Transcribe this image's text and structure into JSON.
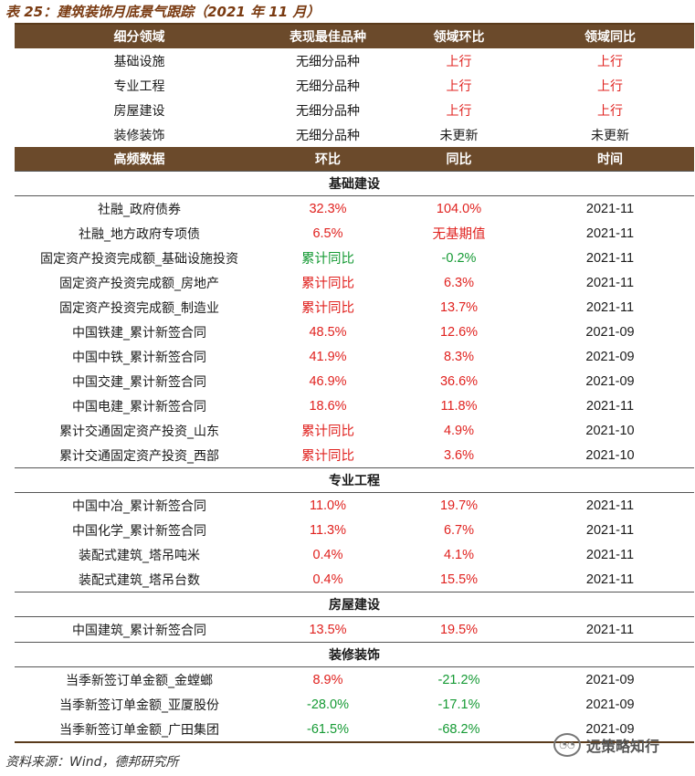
{
  "title": "表 25：建筑装饰月底景气跟踪（2021 年 11 月）",
  "header1": [
    "细分领域",
    "表现最佳品种",
    "领域环比",
    "领域同比"
  ],
  "summary_rows": [
    {
      "domain": "基础设施",
      "best": "无细分品种",
      "mom": "上行",
      "yoy": "上行",
      "mom_color": "red",
      "yoy_color": "red"
    },
    {
      "domain": "专业工程",
      "best": "无细分品种",
      "mom": "上行",
      "yoy": "上行",
      "mom_color": "red",
      "yoy_color": "red"
    },
    {
      "domain": "房屋建设",
      "best": "无细分品种",
      "mom": "上行",
      "yoy": "上行",
      "mom_color": "red",
      "yoy_color": "red"
    },
    {
      "domain": "装修装饰",
      "best": "无细分品种",
      "mom": "未更新",
      "yoy": "未更新",
      "mom_color": "black",
      "yoy_color": "black"
    }
  ],
  "header2": [
    "高频数据",
    "环比",
    "同比",
    "时间"
  ],
  "sections": [
    {
      "name": "基础建设",
      "rows": [
        {
          "item": "社融_政府债券",
          "mom": "32.3%",
          "yoy": "104.0%",
          "time": "2021-11",
          "mom_color": "red",
          "yoy_color": "red"
        },
        {
          "item": "社融_地方政府专项债",
          "mom": "6.5%",
          "yoy": "无基期值",
          "time": "2021-11",
          "mom_color": "red",
          "yoy_color": "red"
        },
        {
          "item": "固定资产投资完成额_基础设施投资",
          "mom": "累计同比",
          "yoy": "-0.2%",
          "time": "2021-11",
          "mom_color": "green",
          "yoy_color": "green"
        },
        {
          "item": "固定资产投资完成额_房地产",
          "mom": "累计同比",
          "yoy": "6.3%",
          "time": "2021-11",
          "mom_color": "red",
          "yoy_color": "red"
        },
        {
          "item": "固定资产投资完成额_制造业",
          "mom": "累计同比",
          "yoy": "13.7%",
          "time": "2021-11",
          "mom_color": "red",
          "yoy_color": "red"
        },
        {
          "item": "中国铁建_累计新签合同",
          "mom": "48.5%",
          "yoy": "12.6%",
          "time": "2021-09",
          "mom_color": "red",
          "yoy_color": "red"
        },
        {
          "item": "中国中铁_累计新签合同",
          "mom": "41.9%",
          "yoy": "8.3%",
          "time": "2021-09",
          "mom_color": "red",
          "yoy_color": "red"
        },
        {
          "item": "中国交建_累计新签合同",
          "mom": "46.9%",
          "yoy": "36.6%",
          "time": "2021-09",
          "mom_color": "red",
          "yoy_color": "red"
        },
        {
          "item": "中国电建_累计新签合同",
          "mom": "18.6%",
          "yoy": "11.8%",
          "time": "2021-11",
          "mom_color": "red",
          "yoy_color": "red"
        },
        {
          "item": "累计交通固定资产投资_山东",
          "mom": "累计同比",
          "yoy": "4.9%",
          "time": "2021-10",
          "mom_color": "red",
          "yoy_color": "red"
        },
        {
          "item": "累计交通固定资产投资_西部",
          "mom": "累计同比",
          "yoy": "3.6%",
          "time": "2021-10",
          "mom_color": "red",
          "yoy_color": "red"
        }
      ]
    },
    {
      "name": "专业工程",
      "rows": [
        {
          "item": "中国中冶_累计新签合同",
          "mom": "11.0%",
          "yoy": "19.7%",
          "time": "2021-11",
          "mom_color": "red",
          "yoy_color": "red"
        },
        {
          "item": "中国化学_累计新签合同",
          "mom": "11.3%",
          "yoy": "6.7%",
          "time": "2021-11",
          "mom_color": "red",
          "yoy_color": "red"
        },
        {
          "item": "装配式建筑_塔吊吨米",
          "mom": "0.4%",
          "yoy": "4.1%",
          "time": "2021-11",
          "mom_color": "red",
          "yoy_color": "red"
        },
        {
          "item": "装配式建筑_塔吊台数",
          "mom": "0.4%",
          "yoy": "15.5%",
          "time": "2021-11",
          "mom_color": "red",
          "yoy_color": "red"
        }
      ]
    },
    {
      "name": "房屋建设",
      "rows": [
        {
          "item": "中国建筑_累计新签合同",
          "mom": "13.5%",
          "yoy": "19.5%",
          "time": "2021-11",
          "mom_color": "red",
          "yoy_color": "red"
        }
      ]
    },
    {
      "name": "装修装饰",
      "rows": [
        {
          "item": "当季新签订单金额_金螳螂",
          "mom": "8.9%",
          "yoy": "-21.2%",
          "time": "2021-09",
          "mom_color": "red",
          "yoy_color": "green"
        },
        {
          "item": "当季新签订单金额_亚厦股份",
          "mom": "-28.0%",
          "yoy": "-17.1%",
          "time": "2021-09",
          "mom_color": "green",
          "yoy_color": "green"
        },
        {
          "item": "当季新签订单金额_广田集团",
          "mom": "-61.5%",
          "yoy": "-68.2%",
          "time": "2021-09",
          "mom_color": "green",
          "yoy_color": "green"
        }
      ]
    }
  ],
  "source": "资料来源：Wind，德邦研究所",
  "watermark": "远策略知行",
  "colors": {
    "header_bg": "#6b4a2b",
    "red": "#e0221f",
    "green": "#159a34",
    "title": "#7a3b12"
  }
}
